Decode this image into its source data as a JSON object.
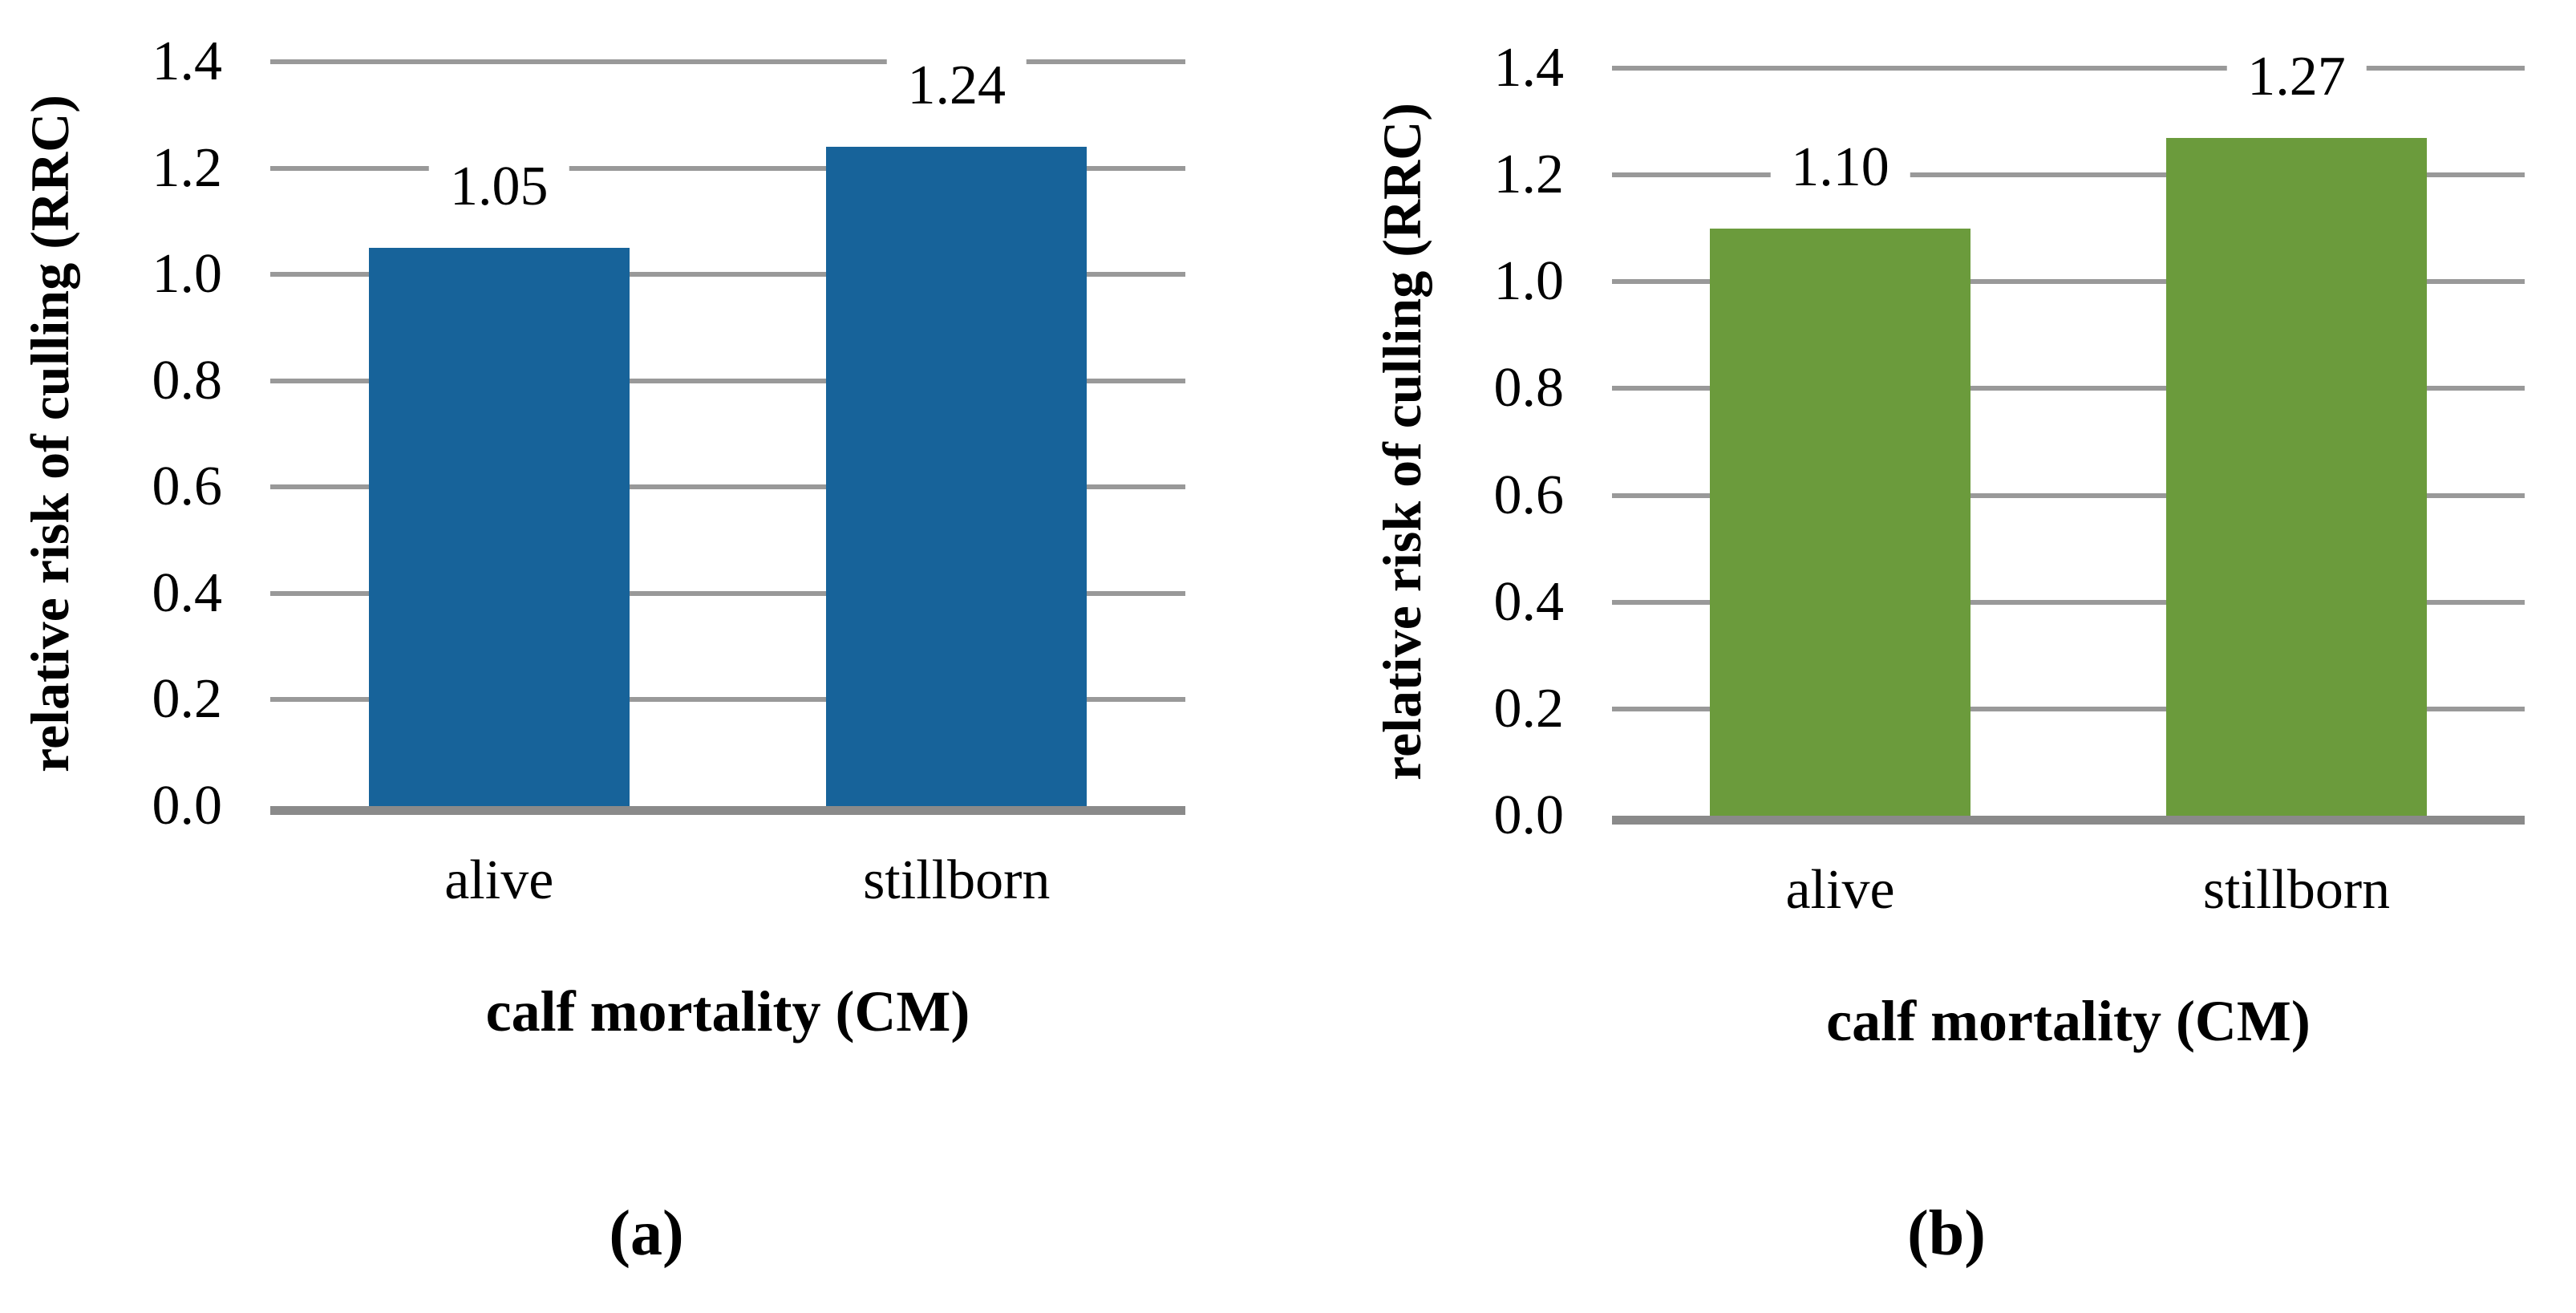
{
  "figure": {
    "background_color": "#ffffff",
    "text_color": "#000000",
    "gridline_color": "#999999",
    "axis_line_color": "#8a8a8a"
  },
  "chart_data": [
    {
      "type": "bar",
      "panel_label": "(a)",
      "title": "",
      "categories": [
        "alive",
        "stillborn"
      ],
      "values": [
        1.05,
        1.24
      ],
      "value_labels": [
        "1.05",
        "1.24"
      ],
      "xlabel": "calf mortality (CM)",
      "ylabel": "relative risk of culling (RRC)",
      "ylim": [
        0,
        1.4
      ],
      "yticks": [
        0,
        0.2,
        0.4,
        0.6,
        0.8,
        1.0,
        1.2,
        1.4
      ],
      "ytick_labels": [
        "0.0",
        "0.2",
        "0.4",
        "0.6",
        "0.8",
        "1.0",
        "1.2",
        "1.4"
      ],
      "grid": "horizontal",
      "legend": "none",
      "bar_color": "#17639A"
    },
    {
      "type": "bar",
      "panel_label": "(b)",
      "title": "",
      "categories": [
        "alive",
        "stillborn"
      ],
      "values": [
        1.1,
        1.27
      ],
      "value_labels": [
        "1.10",
        "1.27"
      ],
      "xlabel": "calf mortality (CM)",
      "ylabel": "relative risk of culling (RRC)",
      "ylim": [
        0,
        1.4
      ],
      "yticks": [
        0,
        0.2,
        0.4,
        0.6,
        0.8,
        1.0,
        1.2,
        1.4
      ],
      "ytick_labels": [
        "0.0",
        "0.2",
        "0.4",
        "0.6",
        "0.8",
        "1.0",
        "1.2",
        "1.4"
      ],
      "grid": "horizontal",
      "legend": "none",
      "bar_color": "#6B9B3C"
    }
  ]
}
